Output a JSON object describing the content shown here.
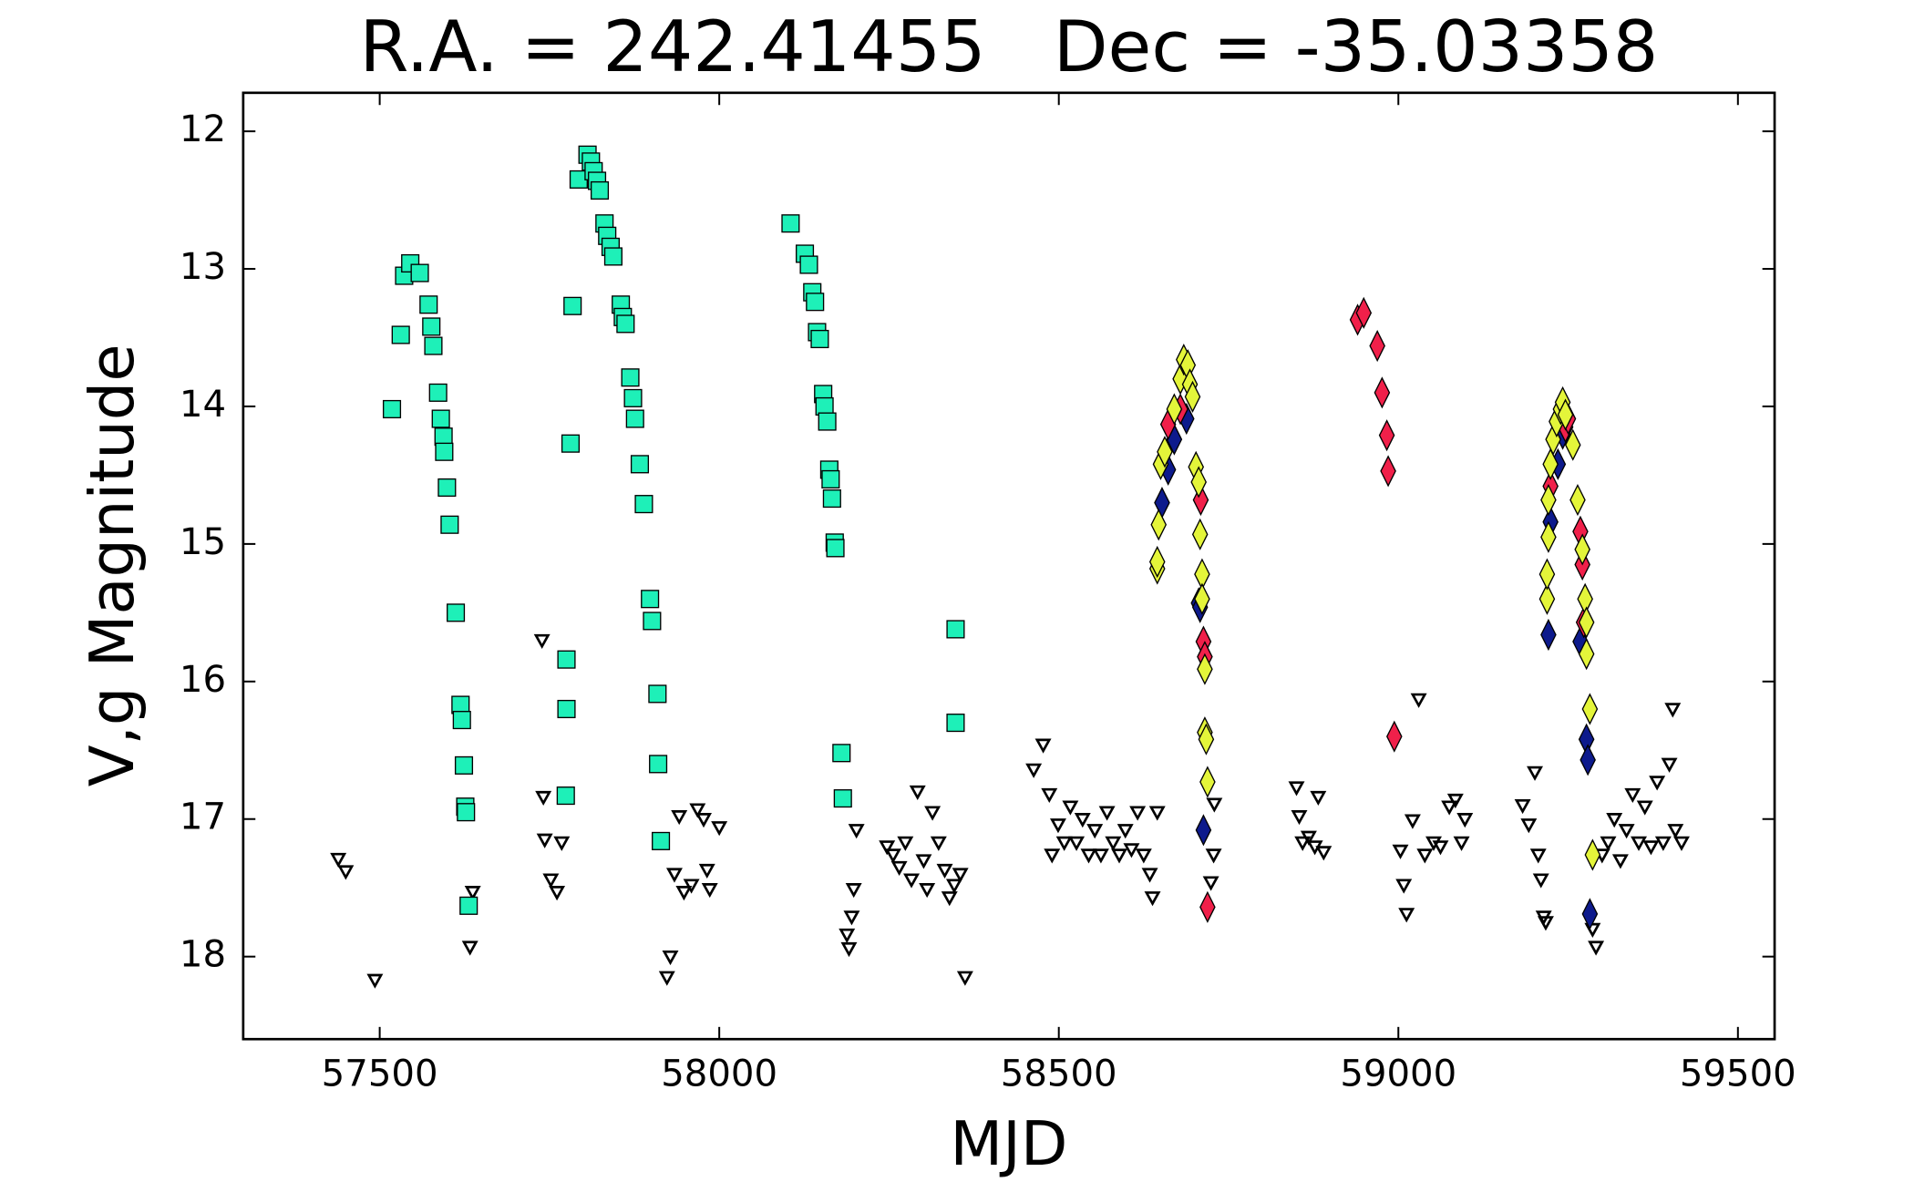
{
  "chart_data": {
    "type": "scatter",
    "title": "R.A. = 242.41455   Dec = -35.03358",
    "xlabel": "MJD",
    "ylabel": "V,g Magnitude",
    "xlim": [
      57299,
      59554
    ],
    "ylim": [
      18.6,
      11.72
    ],
    "xticks": [
      57500,
      58000,
      58500,
      59000,
      59500
    ],
    "yticks": [
      12,
      13,
      14,
      15,
      16,
      17,
      18
    ],
    "grid": false,
    "series": [
      {
        "color": "#1ef0b8",
        "marker": "square",
        "x": [
          57518,
          57531,
          57536,
          57545,
          57559,
          57572,
          57576,
          57579,
          57586,
          57590,
          57594,
          57595,
          57599,
          57603,
          57612,
          57619,
          57621,
          57624,
          57626,
          57627,
          57631,
          57781,
          57784,
          57775,
          57775,
          57774,
          57793,
          57806,
          57811,
          57815,
          57820,
          57824,
          57831,
          57835,
          57840,
          57844,
          57855,
          57858,
          57862,
          57869,
          57873,
          57876,
          57883,
          57889,
          57898,
          57901,
          57909,
          57910,
          57914,
          58105,
          58126,
          58132,
          58137,
          58141,
          58144,
          58148,
          58153,
          58155,
          58159,
          58162,
          58164,
          58166,
          58170,
          58171,
          58180,
          58182,
          58348,
          58348
        ],
        "values": [
          14.02,
          13.48,
          13.05,
          12.96,
          13.03,
          13.26,
          13.42,
          13.56,
          13.9,
          14.09,
          14.22,
          14.33,
          14.59,
          14.86,
          15.5,
          16.17,
          16.28,
          16.61,
          16.91,
          16.95,
          17.63,
          14.27,
          13.27,
          15.84,
          16.2,
          16.83,
          12.35,
          12.17,
          12.22,
          12.29,
          12.36,
          12.43,
          12.67,
          12.76,
          12.84,
          12.91,
          13.26,
          13.35,
          13.4,
          13.79,
          13.94,
          14.09,
          14.42,
          14.71,
          15.4,
          15.56,
          16.09,
          16.6,
          17.16,
          12.67,
          12.89,
          12.97,
          13.17,
          13.24,
          13.46,
          13.51,
          13.91,
          14.0,
          14.11,
          14.46,
          14.53,
          14.67,
          14.99,
          15.03,
          16.52,
          16.85,
          15.62,
          16.3
        ]
      },
      {
        "color": "#e4f53a",
        "marker": "diamond",
        "x": [
          58645,
          58645,
          58647,
          58650,
          58656,
          58670,
          58679,
          58684,
          58690,
          58693,
          58697,
          58702,
          58706,
          58708,
          58711,
          58711,
          58715,
          58715,
          58717,
          58719,
          59219,
          59219,
          59221,
          59221,
          59224,
          59228,
          59233,
          59239,
          59242,
          59246,
          59257,
          59264,
          59271,
          59275,
          59277,
          59277,
          59282,
          59286
        ],
        "values": [
          15.18,
          15.13,
          14.86,
          14.42,
          14.33,
          14.02,
          13.8,
          13.66,
          13.7,
          13.84,
          13.93,
          14.44,
          14.55,
          14.93,
          15.22,
          15.4,
          15.91,
          16.37,
          16.42,
          16.73,
          15.4,
          15.22,
          14.95,
          14.68,
          14.42,
          14.24,
          14.11,
          14.02,
          13.97,
          14.06,
          14.28,
          14.68,
          15.04,
          15.4,
          15.57,
          15.8,
          16.2,
          17.26
        ]
      },
      {
        "color": "#f0204a",
        "marker": "diamond",
        "x": [
          58661,
          58679,
          58709,
          58713,
          58715,
          58719,
          58940,
          58949,
          58969,
          58976,
          58983,
          58985,
          58994,
          59224,
          59246,
          59250,
          59268,
          59271,
          59273
        ],
        "values": [
          14.13,
          14.02,
          14.68,
          15.71,
          15.82,
          17.64,
          13.37,
          13.32,
          13.56,
          13.9,
          14.21,
          14.47,
          16.4,
          14.58,
          14.15,
          14.09,
          14.91,
          15.15,
          15.57
        ]
      },
      {
        "color": "#0d1a8c",
        "marker": "diamond",
        "x": [
          58652,
          58661,
          58670,
          58688,
          58706,
          58708,
          58713,
          59221,
          59224,
          59235,
          59242,
          59268,
          59277,
          59279,
          59282
        ],
        "values": [
          14.7,
          14.46,
          14.24,
          14.09,
          15.43,
          15.46,
          17.08,
          15.66,
          14.84,
          14.42,
          14.2,
          15.71,
          16.42,
          16.57,
          17.69
        ]
      },
      {
        "color": "#000000",
        "marker": "triangle-down",
        "x": [
          57439,
          57450,
          57493,
          57637,
          57633,
          57739,
          57741,
          57743,
          57752,
          57761,
          57768,
          57923,
          57928,
          57934,
          57941,
          57948,
          57959,
          57968,
          57977,
          57982,
          57986,
          58000,
          58188,
          58191,
          58195,
          58198,
          58202,
          58247,
          58256,
          58265,
          58274,
          58283,
          58292,
          58301,
          58306,
          58314,
          58323,
          58332,
          58339,
          58346,
          58355,
          58362,
          58463,
          58477,
          58486,
          58490,
          58499,
          58508,
          58517,
          58526,
          58535,
          58544,
          58553,
          58562,
          58571,
          58580,
          58589,
          58598,
          58607,
          58616,
          58625,
          58634,
          58638,
          58645,
          58724,
          58728,
          58729,
          58850,
          58854,
          58859,
          58868,
          58877,
          58882,
          58890,
          59003,
          59008,
          59012,
          59021,
          59030,
          59039,
          59052,
          59062,
          59075,
          59084,
          59093,
          59098,
          59183,
          59192,
          59201,
          59206,
          59210,
          59214,
          59217,
          59286,
          59291,
          59300,
          59309,
          59318,
          59327,
          59336,
          59345,
          59354,
          59363,
          59372,
          59381,
          59390,
          59399,
          59404,
          59408,
          59417
        ],
        "values": [
          17.29,
          17.38,
          18.17,
          17.53,
          17.93,
          15.7,
          16.84,
          17.15,
          17.44,
          17.53,
          17.17,
          18.15,
          18.0,
          17.4,
          16.98,
          17.53,
          17.48,
          16.93,
          17.0,
          17.37,
          17.51,
          17.06,
          17.84,
          17.94,
          17.71,
          17.51,
          17.08,
          17.2,
          17.26,
          17.35,
          17.17,
          17.44,
          16.8,
          17.3,
          17.51,
          16.95,
          17.17,
          17.37,
          17.57,
          17.48,
          17.4,
          18.15,
          16.64,
          16.46,
          16.82,
          17.26,
          17.04,
          17.17,
          16.91,
          17.17,
          17.0,
          17.26,
          17.08,
          17.26,
          16.95,
          17.17,
          17.26,
          17.08,
          17.22,
          16.95,
          17.26,
          17.4,
          17.57,
          16.95,
          17.46,
          17.26,
          16.89,
          16.77,
          16.98,
          17.17,
          17.13,
          17.2,
          16.84,
          17.24,
          17.23,
          17.48,
          17.69,
          17.01,
          16.13,
          17.26,
          17.17,
          17.2,
          16.91,
          16.86,
          17.17,
          17.0,
          16.9,
          17.04,
          16.66,
          17.26,
          17.44,
          17.71,
          17.75,
          17.8,
          17.93,
          17.26,
          17.17,
          17.0,
          17.3,
          17.08,
          16.82,
          17.17,
          16.91,
          17.2,
          16.73,
          17.17,
          16.6,
          16.2,
          17.08,
          17.17
        ]
      }
    ]
  }
}
